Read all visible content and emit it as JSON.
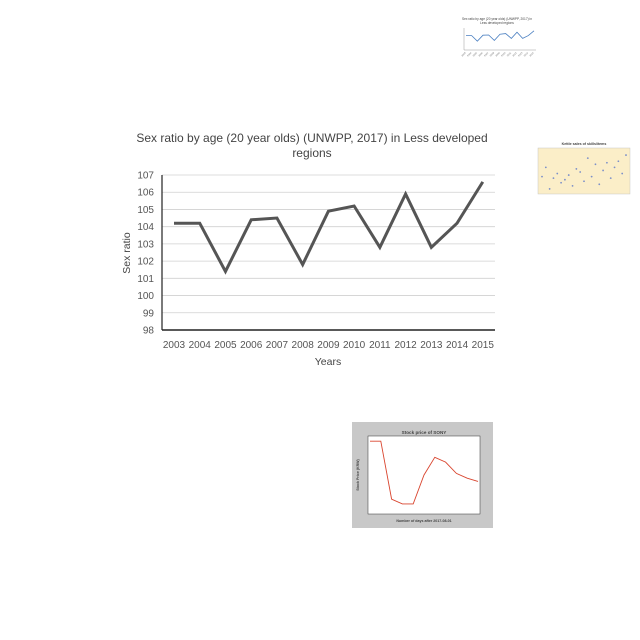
{
  "charts": {
    "main": {
      "title_line1": "Sex ratio by age (20 year olds) (UNWPP, 2017) in Less developed",
      "title_line2": "regions",
      "xlabel": "Years",
      "ylabel": "Sex ratio"
    },
    "top_thumb": {
      "title_line1": "Sex ratio by age (20 year olds) (UNWPP, 2017) in",
      "title_line2": "Less developed regions"
    },
    "right_thumb": {
      "title": "Kettle sales of skills/items"
    },
    "stock_thumb": {
      "title": "Stock price of SONY",
      "xlabel": "Number of days after 2017-08-01",
      "ylabel": "Stock Price (KRW)"
    }
  },
  "chart_data": [
    {
      "type": "line",
      "title": "Sex ratio by age (20 year olds) (UNWPP, 2017) in Less developed regions",
      "xlabel": "Years",
      "ylabel": "Sex ratio",
      "categories": [
        "2003",
        "2004",
        "2005",
        "2006",
        "2007",
        "2008",
        "2009",
        "2010",
        "2011",
        "2012",
        "2013",
        "2014",
        "2015"
      ],
      "series": [
        {
          "values": [
            104.2,
            104.2,
            101.4,
            104.4,
            104.5,
            101.8,
            104.9,
            105.2,
            102.8,
            105.9,
            102.8,
            104.2,
            106.6
          ]
        }
      ],
      "ylim": [
        98,
        107
      ],
      "yticks": [
        98,
        99,
        100,
        101,
        102,
        103,
        104,
        105,
        106,
        107
      ],
      "grid": true,
      "color": "#555555"
    },
    {
      "type": "line",
      "title": "Sex ratio by age (20 year olds) (UNWPP, 2017) in Less developed regions",
      "categories": [
        "2003",
        "2004",
        "2005",
        "2006",
        "2007",
        "2008",
        "2009",
        "2010",
        "2011",
        "2012",
        "2013",
        "2014",
        "2015"
      ],
      "series": [
        {
          "values": [
            104.2,
            104.2,
            101.4,
            104.4,
            104.5,
            101.8,
            104.9,
            105.2,
            102.8,
            105.9,
            102.8,
            104.2,
            106.6
          ]
        }
      ],
      "color": "#4a7fc1"
    },
    {
      "type": "scatter",
      "title": "Kettle sales of skills/items",
      "x": [
        1,
        2,
        3,
        4,
        5,
        6,
        7,
        8,
        9,
        10,
        11,
        12,
        13,
        14,
        15,
        16,
        17,
        18,
        19,
        20,
        21,
        22,
        23
      ],
      "y": [
        3.0,
        3.6,
        2.2,
        2.9,
        3.2,
        2.6,
        2.8,
        3.1,
        2.4,
        3.5,
        3.3,
        2.7,
        4.2,
        3.0,
        3.8,
        2.5,
        3.4,
        3.9,
        2.9,
        3.6,
        4.0,
        3.2,
        4.4
      ],
      "color": "#7b8fc9",
      "background": "#fbeec8"
    },
    {
      "type": "line",
      "title": "Stock price of SONY",
      "xlabel": "Number of days after 2017-08-01",
      "ylabel": "Stock Price (KRW)",
      "x": [
        0,
        1,
        2,
        3,
        4,
        5,
        6,
        7,
        8,
        9,
        10
      ],
      "series": [
        {
          "values": [
            5.9,
            5.9,
            2.3,
            2.0,
            2.0,
            3.8,
            4.9,
            4.6,
            3.9,
            3.6,
            3.4
          ]
        }
      ],
      "color": "#d9452f",
      "background": "#c8c8c8"
    }
  ]
}
